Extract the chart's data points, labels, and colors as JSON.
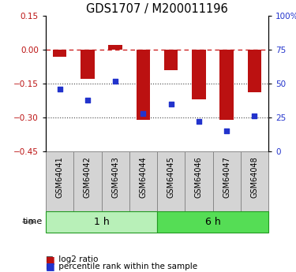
{
  "title": "GDS1707 / M200011196",
  "samples": [
    "GSM64041",
    "GSM64042",
    "GSM64043",
    "GSM64044",
    "GSM64045",
    "GSM64046",
    "GSM64047",
    "GSM64048"
  ],
  "log2_ratio": [
    -0.03,
    -0.13,
    0.02,
    -0.31,
    -0.09,
    -0.22,
    -0.31,
    -0.19
  ],
  "percentile_rank": [
    46,
    38,
    52,
    28,
    35,
    22,
    15,
    26
  ],
  "groups": [
    {
      "label": "1 h",
      "start": 0,
      "end": 4,
      "color": "#b8f0b8"
    },
    {
      "label": "6 h",
      "start": 4,
      "end": 8,
      "color": "#55dd55"
    }
  ],
  "ylim_left": [
    -0.45,
    0.15
  ],
  "ylim_right": [
    0,
    100
  ],
  "yticks_left": [
    0.15,
    0.0,
    -0.15,
    -0.3,
    -0.45
  ],
  "yticks_right": [
    100,
    75,
    50,
    25,
    0
  ],
  "bar_color": "#bb1111",
  "dot_color": "#2233cc",
  "hline_color": "#cc2222",
  "dotted_line_color": "#444444",
  "bar_width": 0.5,
  "bg_color": "#ffffff",
  "label_box_color": "#d4d4d4",
  "label_box_edge": "#888888"
}
